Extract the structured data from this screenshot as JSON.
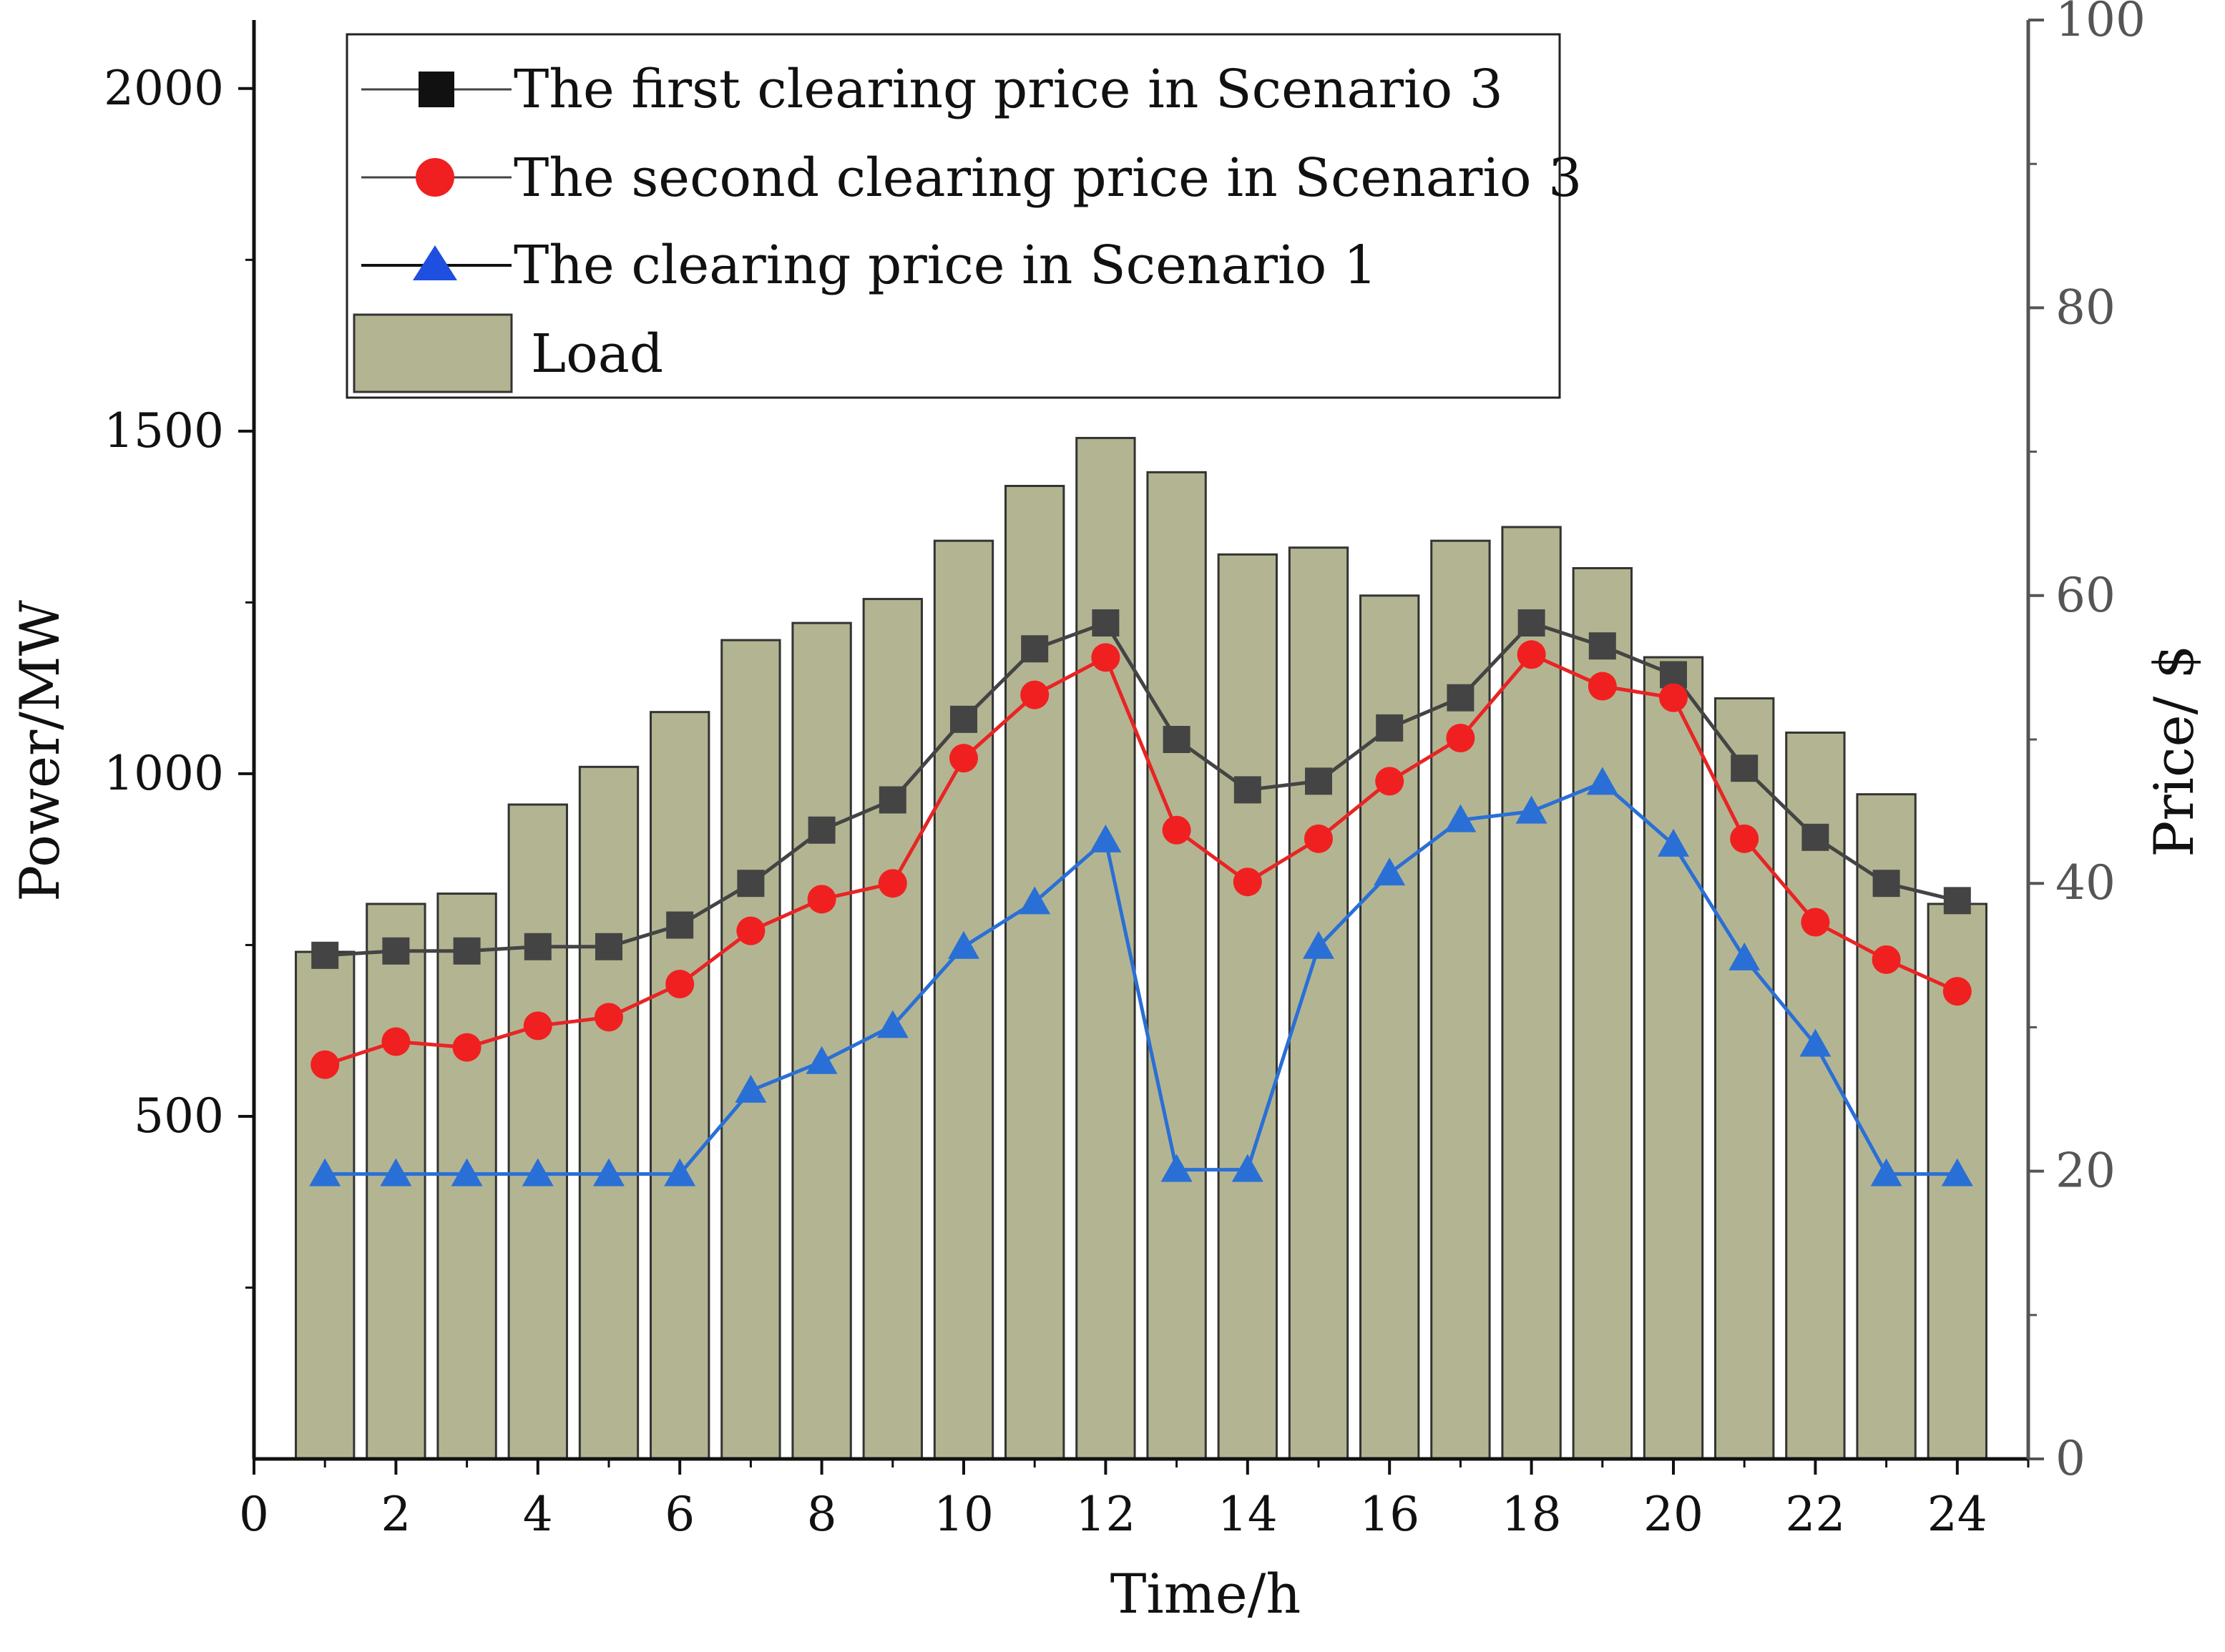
{
  "chart_data": {
    "type": "bar+line",
    "title": "",
    "xlabel": "Time/h",
    "ylabel_left": "Power/MW",
    "ylabel_right": "Price/ $",
    "xlim": [
      0,
      25
    ],
    "ylim_left": [
      0,
      2100
    ],
    "ylim_right": [
      0,
      100
    ],
    "x_ticks": [
      "0",
      "2",
      "4",
      "6",
      "8",
      "10",
      "12",
      "14",
      "16",
      "18",
      "20",
      "22",
      "24"
    ],
    "y_left_ticks": [
      "500",
      "1000",
      "1500",
      "2000"
    ],
    "y_right_ticks": [
      "0",
      "20",
      "40",
      "60",
      "80",
      "100"
    ],
    "hours": [
      1,
      2,
      3,
      4,
      5,
      6,
      7,
      8,
      9,
      10,
      11,
      12,
      13,
      14,
      15,
      16,
      17,
      18,
      19,
      20,
      21,
      22,
      23,
      24
    ],
    "load": {
      "name": "Load",
      "color": "#b3b592",
      "values": [
        740,
        810,
        825,
        955,
        1010,
        1090,
        1195,
        1220,
        1255,
        1340,
        1420,
        1490,
        1440,
        1320,
        1330,
        1260,
        1340,
        1360,
        1300,
        1170,
        1110,
        1060,
        970,
        810
      ]
    },
    "series": [
      {
        "name": "The first clearing price in Scenario 3",
        "color": "#444444",
        "marker": "square",
        "values": [
          35,
          35.3,
          35.3,
          35.6,
          35.6,
          37.1,
          40,
          43.7,
          45.8,
          51.4,
          56.3,
          58.1,
          50,
          46.5,
          47.1,
          50.8,
          52.9,
          58.1,
          56.5,
          54.5,
          48,
          43.2,
          40,
          38.8
        ]
      },
      {
        "name": "The second clearing price in Scenario 3",
        "color": "#e82424",
        "marker": "circle",
        "values": [
          27.4,
          29,
          28.6,
          30.1,
          30.7,
          33,
          36.7,
          38.9,
          40,
          48.7,
          53.1,
          55.7,
          43.7,
          40.1,
          43.1,
          47.1,
          50.1,
          55.9,
          53.7,
          52.9,
          43.1,
          37.3,
          34.7,
          32.5
        ]
      },
      {
        "name": "The clearing price in Scenario 1",
        "color": "#2a6fd6",
        "marker": "triangle",
        "values": [
          19.8,
          19.8,
          19.8,
          19.8,
          19.8,
          19.8,
          25.6,
          27.6,
          30.1,
          35.6,
          38.7,
          43,
          20.1,
          20.1,
          35.6,
          40.7,
          44.4,
          45,
          47,
          42.7,
          34.8,
          28.8,
          19.8,
          19.8
        ]
      }
    ],
    "legend_position": "top-left"
  }
}
